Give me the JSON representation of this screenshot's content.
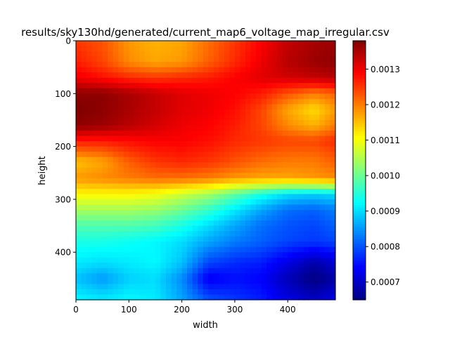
{
  "chart_data": {
    "type": "heatmap",
    "title": "results/sky130hd/generated/current_map6_voltage_map_irregular.csv",
    "xlabel": "width",
    "ylabel": "height",
    "xlim": [
      0,
      490
    ],
    "ylim": [
      490,
      0
    ],
    "x_ticks": [
      0,
      100,
      200,
      300,
      400
    ],
    "y_ticks": [
      0,
      100,
      200,
      300,
      400
    ],
    "x_tick_labels": [
      "0",
      "100",
      "200",
      "300",
      "400"
    ],
    "y_tick_labels": [
      "0",
      "100",
      "200",
      "300",
      "400"
    ],
    "colormap": "jet",
    "colorbar": {
      "range": [
        0.00065,
        0.00138
      ],
      "ticks": [
        0.0007,
        0.0008,
        0.0009,
        0.001,
        0.0011,
        0.0012,
        0.0013
      ],
      "tick_labels": [
        "0.0007",
        "0.0008",
        "0.0009",
        "0.0010",
        "0.0011",
        "0.0012",
        "0.0013"
      ]
    },
    "row_centers": [
      0,
      40,
      70,
      100,
      130,
      160,
      190,
      230,
      260,
      290,
      320,
      350,
      380,
      420,
      450,
      490
    ],
    "col_centers": [
      0,
      50,
      100,
      150,
      200,
      250,
      300,
      350,
      400,
      450,
      490
    ],
    "values": [
      [
        0.00125,
        0.00123,
        0.00118,
        0.00116,
        0.00117,
        0.00121,
        0.00125,
        0.00129,
        0.00133,
        0.00135,
        0.00136
      ],
      [
        0.00127,
        0.00124,
        0.00119,
        0.00117,
        0.00118,
        0.00122,
        0.00126,
        0.0013,
        0.00134,
        0.00136,
        0.00137
      ],
      [
        0.0013,
        0.00128,
        0.00126,
        0.00125,
        0.00126,
        0.00127,
        0.00129,
        0.00131,
        0.00132,
        0.00133,
        0.00134
      ],
      [
        0.00137,
        0.00137,
        0.00135,
        0.00133,
        0.00131,
        0.0013,
        0.00129,
        0.00127,
        0.00123,
        0.0012,
        0.00122
      ],
      [
        0.00138,
        0.00137,
        0.00135,
        0.00133,
        0.00131,
        0.0013,
        0.00128,
        0.00124,
        0.00117,
        0.00113,
        0.00118
      ],
      [
        0.00137,
        0.00136,
        0.00134,
        0.00132,
        0.0013,
        0.00129,
        0.00127,
        0.00124,
        0.00119,
        0.00116,
        0.0012
      ],
      [
        0.00127,
        0.00127,
        0.00128,
        0.00129,
        0.00129,
        0.00128,
        0.00126,
        0.00125,
        0.00124,
        0.00124,
        0.00126
      ],
      [
        0.00115,
        0.00117,
        0.00122,
        0.00125,
        0.00126,
        0.00125,
        0.00123,
        0.00121,
        0.0012,
        0.0012,
        0.00122
      ],
      [
        0.00118,
        0.00119,
        0.0012,
        0.00121,
        0.00121,
        0.0012,
        0.00118,
        0.00117,
        0.00117,
        0.00118,
        0.00119
      ],
      [
        0.00111,
        0.00111,
        0.00111,
        0.0011,
        0.00107,
        0.00104,
        0.00099,
        0.00094,
        0.0009,
        0.00089,
        0.0009
      ],
      [
        0.00104,
        0.00104,
        0.00104,
        0.00103,
        0.001,
        0.00096,
        0.00091,
        0.00086,
        0.00082,
        0.00081,
        0.00083
      ],
      [
        0.00098,
        0.00098,
        0.00098,
        0.00097,
        0.00094,
        0.0009,
        0.00086,
        0.00082,
        0.0008,
        0.00079,
        0.00081
      ],
      [
        0.00094,
        0.00094,
        0.00093,
        0.00092,
        0.0009,
        0.00086,
        0.00083,
        0.00081,
        0.00079,
        0.00078,
        0.00079
      ],
      [
        0.00091,
        0.0009,
        0.00091,
        0.00092,
        0.00088,
        0.00079,
        0.00077,
        0.00076,
        0.00072,
        0.00068,
        0.00071
      ],
      [
        0.00088,
        0.00085,
        0.00089,
        0.0009,
        0.00084,
        0.00073,
        0.00075,
        0.00074,
        0.00069,
        0.00065,
        0.00068
      ],
      [
        0.00092,
        0.00091,
        0.00092,
        0.00091,
        0.00086,
        0.0008,
        0.00078,
        0.00076,
        0.00072,
        0.0007,
        0.00072
      ]
    ]
  }
}
